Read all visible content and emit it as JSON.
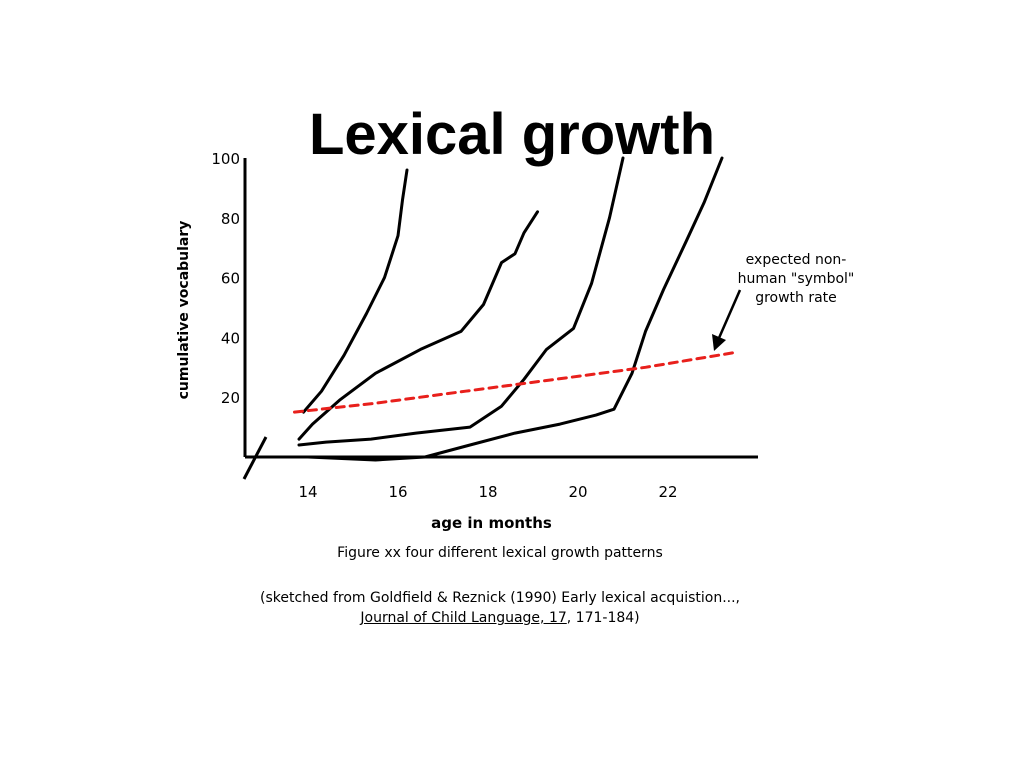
{
  "slide": {
    "title": "Lexical growth"
  },
  "chart_data": {
    "type": "line",
    "title": "",
    "xlabel": "age in months",
    "ylabel": "cumulative vocabulary",
    "xlim": [
      12.6,
      24.0
    ],
    "ylim": [
      0,
      100
    ],
    "xticks": [
      14,
      16,
      18,
      20,
      22
    ],
    "yticks": [
      20,
      40,
      60,
      80,
      100
    ],
    "grid": false,
    "series": [
      {
        "style": "solid",
        "color": "#000000",
        "x": [
          13.9,
          14.3,
          14.8,
          15.3,
          15.7,
          16.0,
          16.1,
          16.2
        ],
        "y": [
          15,
          22,
          34,
          48,
          60,
          74,
          86,
          96
        ]
      },
      {
        "style": "solid",
        "color": "#000000",
        "x": [
          13.8,
          14.1,
          14.7,
          15.5,
          16.5,
          17.4,
          17.9,
          18.3,
          18.6,
          18.8,
          19.1
        ],
        "y": [
          6,
          11,
          19,
          28,
          36,
          42,
          51,
          65,
          68,
          75,
          82
        ]
      },
      {
        "style": "solid",
        "color": "#000000",
        "x": [
          13.8,
          14.4,
          15.4,
          16.4,
          17.6,
          18.3,
          18.8,
          19.3,
          19.9,
          20.3,
          20.7,
          21.0
        ],
        "y": [
          4,
          5,
          6,
          8,
          10,
          17,
          26,
          36,
          43,
          58,
          80,
          100
        ]
      },
      {
        "style": "solid",
        "color": "#000000",
        "x": [
          14.0,
          15.5,
          16.6,
          17.6,
          18.6,
          19.6,
          20.4,
          20.8,
          21.2,
          21.5,
          21.9,
          22.4,
          22.8,
          23.2
        ],
        "y": [
          0,
          -1,
          0,
          4,
          8,
          11,
          14,
          16,
          28,
          42,
          56,
          72,
          85,
          100
        ]
      },
      {
        "name": "expected non-human \"symbol\" growth rate",
        "style": "dashed",
        "color": "#e8201c",
        "x": [
          13.7,
          15.5,
          17.5,
          19.5,
          21.5,
          23.5
        ],
        "y": [
          15,
          18,
          22,
          26,
          30,
          35
        ]
      }
    ],
    "annotation": {
      "lines": [
        "expected non-",
        "human \"symbol\"",
        "growth rate"
      ]
    }
  },
  "caption": {
    "figure": "Figure xx  four different lexical growth patterns",
    "source_prefix": "(sketched from Goldfield & Reznick (1990) Early lexical acquistion...,",
    "journal": "Journal of Child Language, 17",
    "source_suffix": ", 171-184)"
  }
}
